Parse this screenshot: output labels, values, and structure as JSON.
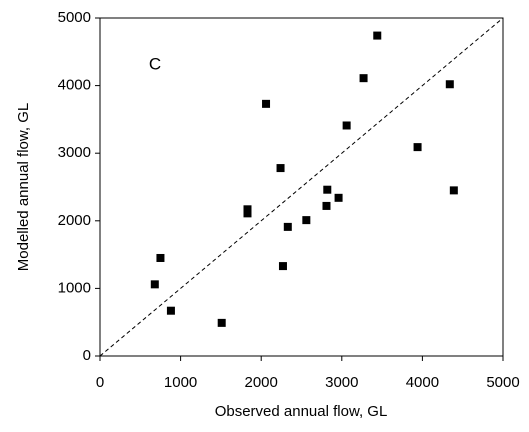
{
  "chart_data": {
    "type": "scatter",
    "x_label": "Observed annual flow, GL",
    "y_label": "Modelled annual flow, GL",
    "annotation": "C",
    "x": [
      3440,
      3270,
      4340,
      2060,
      3060,
      3940,
      4390,
      2240,
      2820,
      1830,
      1830,
      2810,
      2960,
      2560,
      2330,
      2270,
      750,
      680,
      880,
      1510
    ],
    "y": [
      4740,
      4110,
      4020,
      3730,
      3410,
      3090,
      2450,
      2780,
      2460,
      2170,
      2110,
      2220,
      2340,
      2010,
      1910,
      1330,
      1450,
      1060,
      670,
      490
    ],
    "color": "#000000",
    "xlim": [
      0,
      5000
    ],
    "xticks": [
      0,
      1000,
      2000,
      3000,
      4000,
      5000
    ],
    "ylim": [
      0,
      5000
    ],
    "yticks": [
      0,
      1000,
      2000,
      3000,
      4000,
      5000
    ],
    "grid": false
  }
}
